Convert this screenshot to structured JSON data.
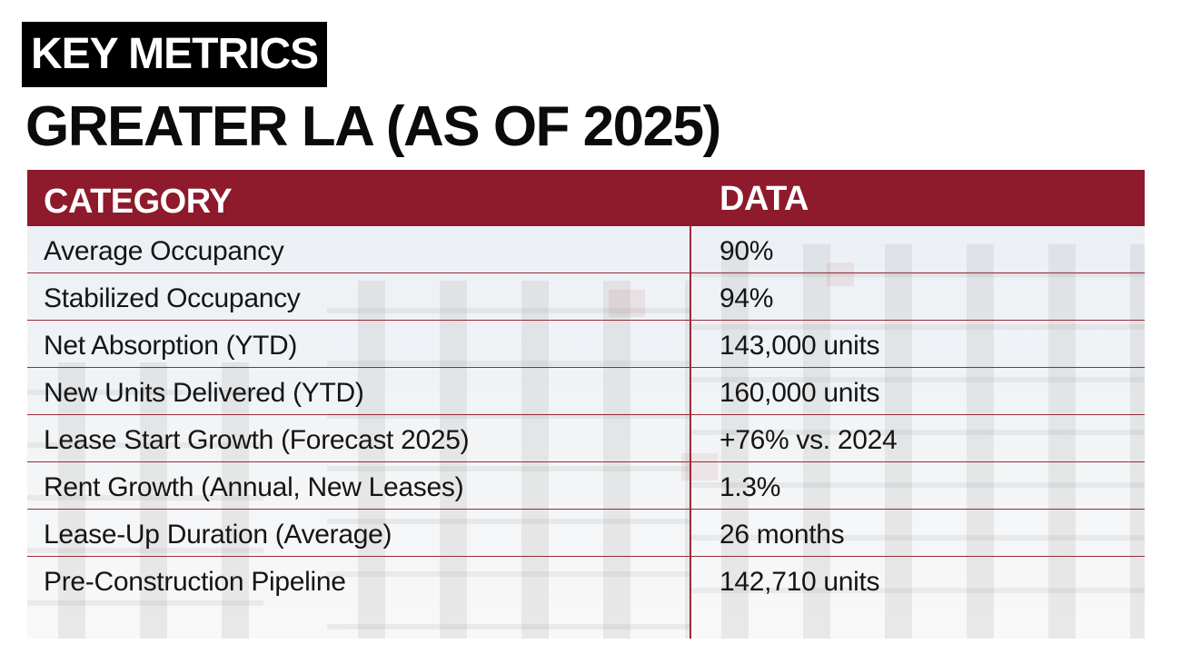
{
  "label": "KEY METRICS",
  "title": "GREATER LA (AS OF 2025)",
  "table": {
    "headers": {
      "category": "CATEGORY",
      "data": "DATA"
    },
    "rows": [
      {
        "category": "Average Occupancy",
        "data": "90%"
      },
      {
        "category": "Stabilized Occupancy",
        "data": "94%"
      },
      {
        "category": "Net Absorption (YTD)",
        "data": "143,000 units"
      },
      {
        "category": "New Units Delivered (YTD)",
        "data": "160,000 units"
      },
      {
        "category": "Lease Start Growth (Forecast 2025)",
        "data": "+76% vs. 2024"
      },
      {
        "category": "Rent Growth (Annual, New Leases)",
        "data": "1.3%"
      },
      {
        "category": "Lease-Up Duration (Average)",
        "data": "26 months"
      },
      {
        "category": "Pre-Construction Pipeline",
        "data": "142,710 units"
      }
    ]
  },
  "colors": {
    "header_bg": "#8e1a2c",
    "label_bg": "#000000",
    "row_divider": "#9a2a3a"
  }
}
